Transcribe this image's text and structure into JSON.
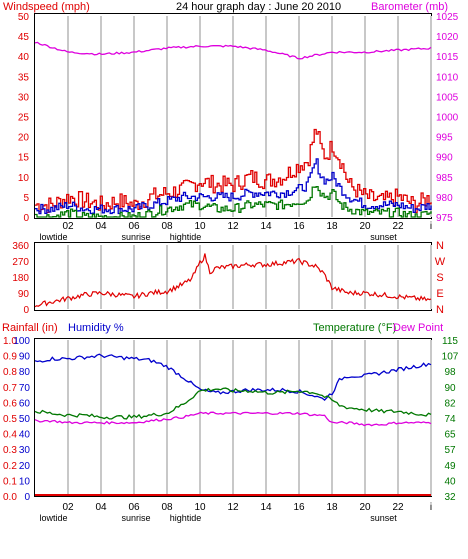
{
  "chart_data": [
    {
      "type": "line",
      "title": "24 hour graph day : June 20 2010",
      "ylabel_left": "Windspeed (mph)",
      "ylabel_right": "Barometer (mb)",
      "x_ticks": [
        "02",
        "04",
        "06",
        "08",
        "10",
        "12",
        "14",
        "16",
        "18",
        "20",
        "22",
        "i"
      ],
      "x_markers": [
        {
          "label": "lowtide",
          "at": "01"
        },
        {
          "label": "sunrise",
          "at": "06"
        },
        {
          "label": "hightide",
          "at": "09"
        },
        {
          "label": "sunset",
          "at": "21"
        }
      ],
      "ylim_left": [
        0,
        50
      ],
      "yticks_left": [
        "0",
        "5",
        "10",
        "15",
        "20",
        "25",
        "30",
        "35",
        "40",
        "45",
        "50"
      ],
      "ylim_right": [
        975,
        1025
      ],
      "yticks_right": [
        "975",
        "980",
        "985",
        "990",
        "995",
        "1000",
        "1005",
        "1010",
        "1015",
        "1020",
        "1025"
      ],
      "grid": "vertical",
      "series": [
        {
          "name": "Windspeed (mph)",
          "color": "#e00000",
          "axis": "left",
          "x": [
            0,
            1,
            2,
            3,
            4,
            5,
            6,
            7,
            8,
            9,
            10,
            11,
            12,
            13,
            14,
            15,
            16,
            16.5,
            17,
            17.3,
            17.6,
            18,
            18.5,
            19,
            20,
            21,
            22,
            23,
            24
          ],
          "values": [
            3,
            3,
            5,
            4,
            3,
            4,
            3,
            5,
            6,
            7,
            9,
            8,
            8,
            10,
            9,
            10,
            13,
            14,
            22,
            17,
            15,
            18,
            14,
            8,
            5,
            4,
            5,
            3,
            5
          ]
        },
        {
          "name": "Wind gust avg",
          "color": "#0000cc",
          "axis": "left",
          "x": [
            0,
            1,
            2,
            3,
            4,
            5,
            6,
            7,
            8,
            9,
            10,
            11,
            12,
            13,
            14,
            15,
            16,
            16.5,
            17,
            17.3,
            17.6,
            18,
            18.5,
            19,
            20,
            21,
            22,
            23,
            24
          ],
          "values": [
            2,
            2,
            3,
            2,
            2,
            2,
            2,
            3,
            4,
            5,
            5,
            5,
            5,
            6,
            6,
            6,
            7,
            8,
            14,
            10,
            9,
            10,
            7,
            5,
            3,
            3,
            3,
            2,
            3
          ]
        },
        {
          "name": "Wind min",
          "color": "#007700",
          "axis": "left",
          "x": [
            0,
            1,
            2,
            3,
            4,
            5,
            6,
            7,
            8,
            9,
            10,
            11,
            12,
            13,
            14,
            15,
            16,
            16.5,
            17,
            17.3,
            17.6,
            18,
            18.5,
            19,
            20,
            21,
            22,
            23,
            24
          ],
          "values": [
            0,
            0,
            1,
            0,
            0,
            0,
            0,
            1,
            2,
            3,
            3,
            2,
            2,
            3,
            3,
            3,
            4,
            4,
            9,
            6,
            5,
            6,
            3,
            2,
            1,
            1,
            1,
            0,
            1
          ]
        },
        {
          "name": "Barometer (mb)",
          "color": "#dd00dd",
          "axis": "right",
          "x": [
            0,
            2,
            4,
            6,
            8,
            10,
            12,
            14,
            16,
            18,
            20,
            22,
            24
          ],
          "values": [
            1018.5,
            1016,
            1015.5,
            1016,
            1017,
            1017.5,
            1017.5,
            1016.5,
            1014.5,
            1016,
            1016,
            1016.5,
            1017
          ]
        }
      ]
    },
    {
      "type": "line",
      "ylabel_left_ticks": [
        "0",
        "90",
        "180",
        "270",
        "360"
      ],
      "ylim": [
        0,
        360
      ],
      "right_labels": [
        "N",
        "W",
        "S",
        "E",
        "N"
      ],
      "x_ticks": [
        "02",
        "04",
        "06",
        "08",
        "10",
        "12",
        "14",
        "16",
        "18",
        "20",
        "22",
        "i"
      ],
      "grid": "vertical",
      "series": [
        {
          "name": "Wind direction",
          "color": "#e00000",
          "x": [
            0,
            1,
            2,
            3,
            4,
            5,
            6,
            7,
            8,
            8.5,
            9,
            9.5,
            10,
            10.3,
            10.6,
            11,
            12,
            13,
            14,
            15,
            16,
            17,
            17.5,
            18,
            19,
            20,
            21,
            22,
            23,
            24
          ],
          "values": [
            20,
            40,
            60,
            80,
            90,
            80,
            70,
            90,
            100,
            120,
            140,
            170,
            260,
            300,
            210,
            230,
            240,
            250,
            250,
            260,
            270,
            240,
            200,
            120,
            90,
            90,
            80,
            70,
            60,
            50
          ]
        }
      ]
    },
    {
      "type": "line",
      "ylabel_left": "Rainfall (in)",
      "ylabel_left2": "Humidity %",
      "ylabel_right": "Temperature (°F)",
      "ylabel_right2": "Dew Point",
      "yticks_left_rain": [
        "0.0",
        "0.1",
        "0.2",
        "0.3",
        "0.4",
        "0.5",
        "0.6",
        "0.7",
        "0.8",
        "0.9",
        "1.0"
      ],
      "yticks_left_humidity": [
        "0",
        "10",
        "20",
        "30",
        "40",
        "50",
        "60",
        "70",
        "80",
        "90",
        "100"
      ],
      "ylim_left": [
        0,
        100
      ],
      "yticks_right": [
        "32",
        "40",
        "49",
        "57",
        "65",
        "74",
        "82",
        "90",
        "98",
        "107",
        "115"
      ],
      "ylim_right": [
        32,
        115
      ],
      "x_ticks": [
        "02",
        "04",
        "06",
        "08",
        "10",
        "12",
        "14",
        "16",
        "18",
        "20",
        "22",
        "i"
      ],
      "x_markers": [
        {
          "label": "lowtide",
          "at": "01"
        },
        {
          "label": "sunrise",
          "at": "06"
        },
        {
          "label": "hightide",
          "at": "09"
        },
        {
          "label": "sunset",
          "at": "21"
        }
      ],
      "grid": "vertical",
      "series": [
        {
          "name": "Rainfall (in)",
          "color": "#e00000",
          "axis": "left",
          "x": [
            0,
            24
          ],
          "values": [
            0.0,
            0.0
          ]
        },
        {
          "name": "Humidity %",
          "color": "#0000cc",
          "axis": "left",
          "x": [
            0,
            1,
            2,
            3,
            4,
            5,
            6,
            7,
            8,
            9,
            10,
            11,
            12,
            13,
            14,
            15,
            16,
            17,
            17.5,
            18,
            18.5,
            19,
            20,
            21,
            22,
            23,
            24
          ],
          "values": [
            86,
            88,
            88,
            89,
            90,
            89,
            88,
            87,
            83,
            76,
            68,
            66,
            67,
            68,
            68,
            68,
            67,
            64,
            62,
            66,
            75,
            77,
            77,
            79,
            81,
            83,
            85
          ]
        },
        {
          "name": "Temperature (°F)",
          "color": "#007700",
          "axis": "right",
          "x": [
            0,
            1,
            2,
            3,
            4,
            5,
            6,
            7,
            8,
            9,
            10,
            11,
            12,
            13,
            14,
            15,
            16,
            17,
            18,
            18.5,
            19,
            20,
            21,
            22,
            23,
            24
          ],
          "values": [
            77,
            76,
            75,
            75,
            74,
            74,
            74,
            75,
            76,
            81,
            88,
            89,
            88,
            88,
            87,
            87,
            88,
            87,
            83,
            80,
            79,
            78,
            77,
            77,
            76,
            75
          ]
        },
        {
          "name": "Dew Point",
          "color": "#dd00dd",
          "axis": "right",
          "x": [
            0,
            1,
            2,
            3,
            4,
            5,
            6,
            7,
            8,
            9,
            10,
            11,
            12,
            13,
            14,
            15,
            16,
            17,
            17.5,
            18,
            18.5,
            19,
            20,
            21,
            22,
            23,
            24
          ],
          "values": [
            72,
            72,
            71,
            71,
            71,
            71,
            71,
            72,
            73,
            74,
            76,
            76,
            76,
            76,
            76,
            76,
            76,
            75,
            75,
            71,
            71,
            71,
            70,
            70,
            71,
            71,
            71
          ]
        }
      ]
    }
  ]
}
